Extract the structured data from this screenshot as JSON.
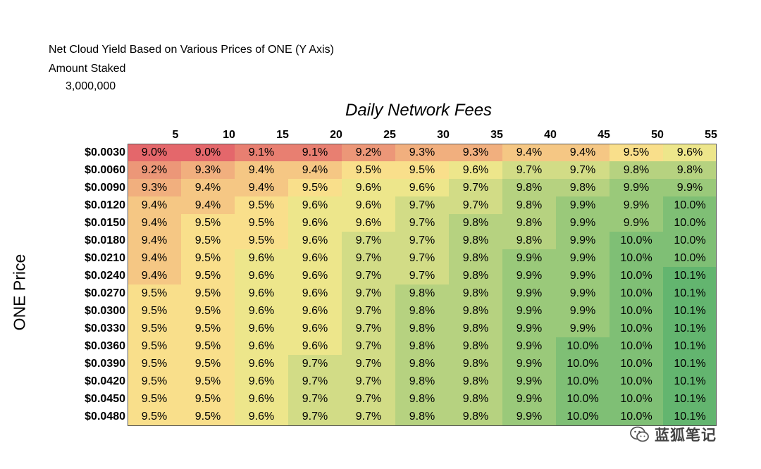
{
  "header": {
    "title": "Net Cloud Yield Based on Various  Prices of ONE (Y Axis)",
    "staked_label": "Amount Staked",
    "staked_value": "3,000,000"
  },
  "watermark": {
    "text": "蓝狐笔记",
    "icon": "wechat-icon"
  },
  "chart_data": {
    "type": "heatmap",
    "title": "Net Cloud Yield Based on Various  Prices of ONE (Y Axis)",
    "xlabel": "Daily Network Fees",
    "ylabel": "ONE Price",
    "colors": {
      "low": "#e4676b",
      "mid": "#fbeb8e",
      "high": "#63b56f"
    },
    "x": [
      "5",
      "10",
      "15",
      "20",
      "25",
      "30",
      "35",
      "40",
      "45",
      "50",
      "55"
    ],
    "y": [
      "$0.0030",
      "$0.0060",
      "$0.0090",
      "$0.0120",
      "$0.0150",
      "$0.0180",
      "$0.0210",
      "$0.0240",
      "$0.0270",
      "$0.0300",
      "$0.0330",
      "$0.0360",
      "$0.0390",
      "$0.0420",
      "$0.0450",
      "$0.0480"
    ],
    "values": [
      [
        "9.0%",
        "9.0%",
        "9.1%",
        "9.1%",
        "9.2%",
        "9.3%",
        "9.3%",
        "9.4%",
        "9.4%",
        "9.5%",
        "9.6%"
      ],
      [
        "9.2%",
        "9.3%",
        "9.4%",
        "9.4%",
        "9.5%",
        "9.5%",
        "9.6%",
        "9.7%",
        "9.7%",
        "9.8%",
        "9.8%"
      ],
      [
        "9.3%",
        "9.4%",
        "9.4%",
        "9.5%",
        "9.6%",
        "9.6%",
        "9.7%",
        "9.8%",
        "9.8%",
        "9.9%",
        "9.9%"
      ],
      [
        "9.4%",
        "9.4%",
        "9.5%",
        "9.6%",
        "9.6%",
        "9.7%",
        "9.7%",
        "9.8%",
        "9.9%",
        "9.9%",
        "10.0%"
      ],
      [
        "9.4%",
        "9.5%",
        "9.5%",
        "9.6%",
        "9.6%",
        "9.7%",
        "9.8%",
        "9.8%",
        "9.9%",
        "9.9%",
        "10.0%"
      ],
      [
        "9.4%",
        "9.5%",
        "9.5%",
        "9.6%",
        "9.7%",
        "9.7%",
        "9.8%",
        "9.8%",
        "9.9%",
        "10.0%",
        "10.0%"
      ],
      [
        "9.4%",
        "9.5%",
        "9.6%",
        "9.6%",
        "9.7%",
        "9.7%",
        "9.8%",
        "9.9%",
        "9.9%",
        "10.0%",
        "10.0%"
      ],
      [
        "9.4%",
        "9.5%",
        "9.6%",
        "9.6%",
        "9.7%",
        "9.7%",
        "9.8%",
        "9.9%",
        "9.9%",
        "10.0%",
        "10.1%"
      ],
      [
        "9.5%",
        "9.5%",
        "9.6%",
        "9.6%",
        "9.7%",
        "9.8%",
        "9.8%",
        "9.9%",
        "9.9%",
        "10.0%",
        "10.1%"
      ],
      [
        "9.5%",
        "9.5%",
        "9.6%",
        "9.6%",
        "9.7%",
        "9.8%",
        "9.8%",
        "9.9%",
        "9.9%",
        "10.0%",
        "10.1%"
      ],
      [
        "9.5%",
        "9.5%",
        "9.6%",
        "9.6%",
        "9.7%",
        "9.8%",
        "9.8%",
        "9.9%",
        "9.9%",
        "10.0%",
        "10.1%"
      ],
      [
        "9.5%",
        "9.5%",
        "9.6%",
        "9.6%",
        "9.7%",
        "9.8%",
        "9.8%",
        "9.9%",
        "10.0%",
        "10.0%",
        "10.1%"
      ],
      [
        "9.5%",
        "9.5%",
        "9.6%",
        "9.7%",
        "9.7%",
        "9.8%",
        "9.8%",
        "9.9%",
        "10.0%",
        "10.0%",
        "10.1%"
      ],
      [
        "9.5%",
        "9.5%",
        "9.6%",
        "9.7%",
        "9.7%",
        "9.8%",
        "9.8%",
        "9.9%",
        "10.0%",
        "10.0%",
        "10.1%"
      ],
      [
        "9.5%",
        "9.5%",
        "9.6%",
        "9.7%",
        "9.7%",
        "9.8%",
        "9.8%",
        "9.9%",
        "10.0%",
        "10.0%",
        "10.1%"
      ],
      [
        "9.5%",
        "9.5%",
        "9.6%",
        "9.7%",
        "9.7%",
        "9.8%",
        "9.8%",
        "9.9%",
        "10.0%",
        "10.0%",
        "10.1%"
      ]
    ]
  }
}
